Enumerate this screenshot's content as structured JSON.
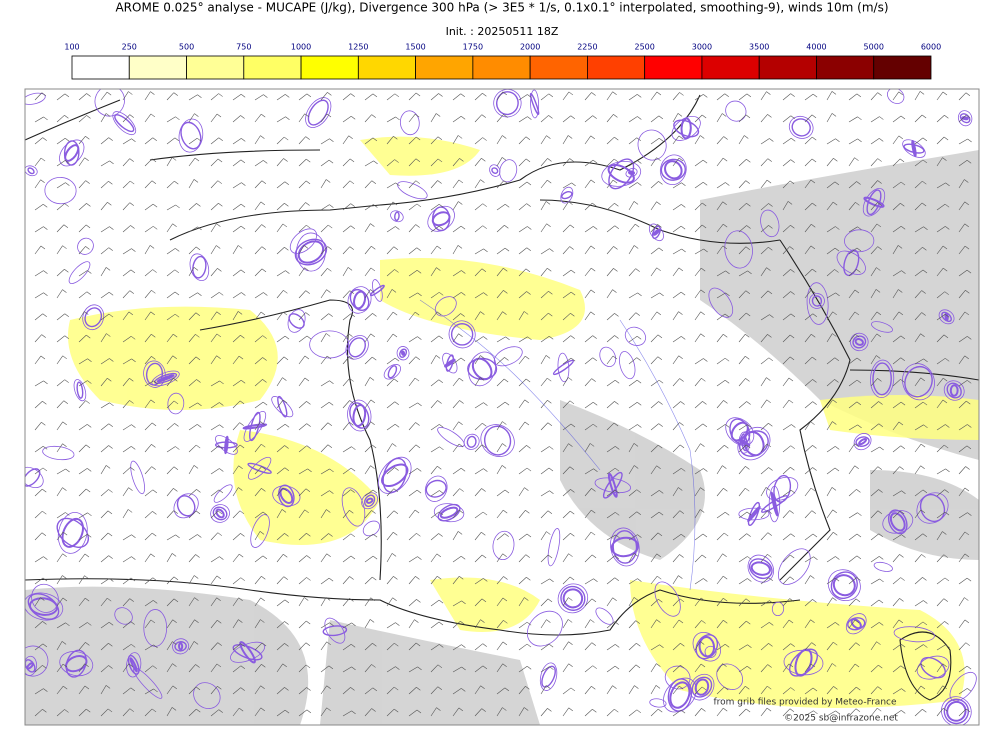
{
  "header": {
    "title": "AROME 0.025° analyse - MUCAPE (J/kg), Divergence 300 hPa (> 3E5 * 1/s, 0.1x0.1° interpolated, smoothing-9), winds 10m (m/s)",
    "subtitle": "Init. : 20250511 18Z"
  },
  "colorbar": {
    "ticks": [
      100,
      250,
      500,
      750,
      1000,
      1250,
      1500,
      1750,
      2000,
      2250,
      2500,
      3000,
      3500,
      4000,
      5000,
      6000
    ],
    "colors": [
      "#ffffff",
      "#ffffc8",
      "#ffff96",
      "#ffff64",
      "#ffff00",
      "#ffd700",
      "#ffa500",
      "#ff8c00",
      "#ff6400",
      "#ff4000",
      "#ff0000",
      "#dc0000",
      "#b40000",
      "#8b0000",
      "#640000"
    ]
  },
  "credits": {
    "source": "from grib files provided by Meteo-France",
    "copyright": "©2025 sb@infrazone.net"
  }
}
